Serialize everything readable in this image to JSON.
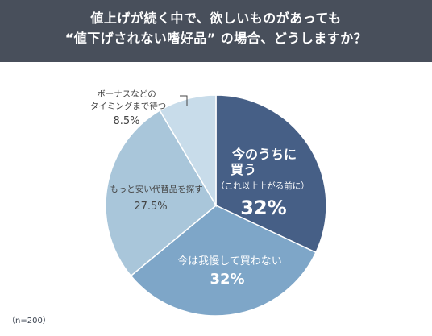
{
  "header": {
    "title_line1": "値上げが続く中で、欲しいものがあっても",
    "title_line2": "“値下げされない嗜好品” の場合、どうしますか？"
  },
  "chart_data": {
    "type": "pie",
    "title": "値上げが続く中で、欲しいものがあっても “値下げされない嗜好品” の場合、どうしますか？",
    "slices": [
      {
        "label": "今のうちに買う",
        "sublabel": "（これ以上上がる前に）",
        "value": 32,
        "value_label": "32%",
        "color": "#465f86"
      },
      {
        "label": "今は我慢して買わない",
        "value": 32,
        "value_label": "32%",
        "color": "#7ea6c8"
      },
      {
        "label": "もっと安い代替品を探す",
        "value": 27.5,
        "value_label": "27.5%",
        "color": "#a9c6da"
      },
      {
        "label": "ボーナスなどの タイミングまで待つ",
        "value": 8.5,
        "value_label": "8.5%",
        "color": "#c8dcea"
      }
    ],
    "start_angle": "12 o'clock, clockwise"
  },
  "sample_note": "（n=200）"
}
